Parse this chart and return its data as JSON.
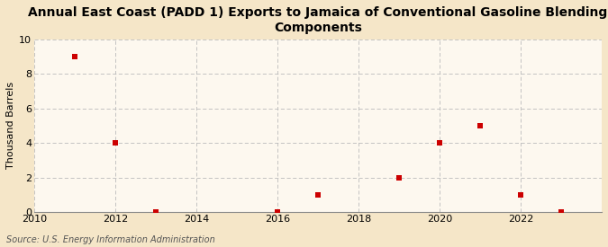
{
  "title_line1": "Annual East Coast (PADD 1) Exports to Jamaica of Conventional Gasoline Blending",
  "title_line2": "Components",
  "ylabel": "Thousand Barrels",
  "source_text": "Source: U.S. Energy Information Administration",
  "x_data": [
    2011,
    2012,
    2013,
    2016,
    2017,
    2019,
    2020,
    2021,
    2022,
    2023
  ],
  "y_data": [
    9,
    4,
    0,
    0,
    1,
    2,
    4,
    5,
    1,
    0
  ],
  "marker_color": "#cc0000",
  "marker": "s",
  "marker_size": 16,
  "xlim": [
    2010,
    2024
  ],
  "ylim": [
    0,
    10
  ],
  "xticks": [
    2010,
    2012,
    2014,
    2016,
    2018,
    2020,
    2022
  ],
  "yticks": [
    0,
    2,
    4,
    6,
    8,
    10
  ],
  "background_color": "#f5e6c8",
  "plot_bg_color": "#fdf8ef",
  "grid_color": "#bbbbbb",
  "title_fontsize": 10,
  "label_fontsize": 8,
  "tick_fontsize": 8,
  "source_fontsize": 7
}
